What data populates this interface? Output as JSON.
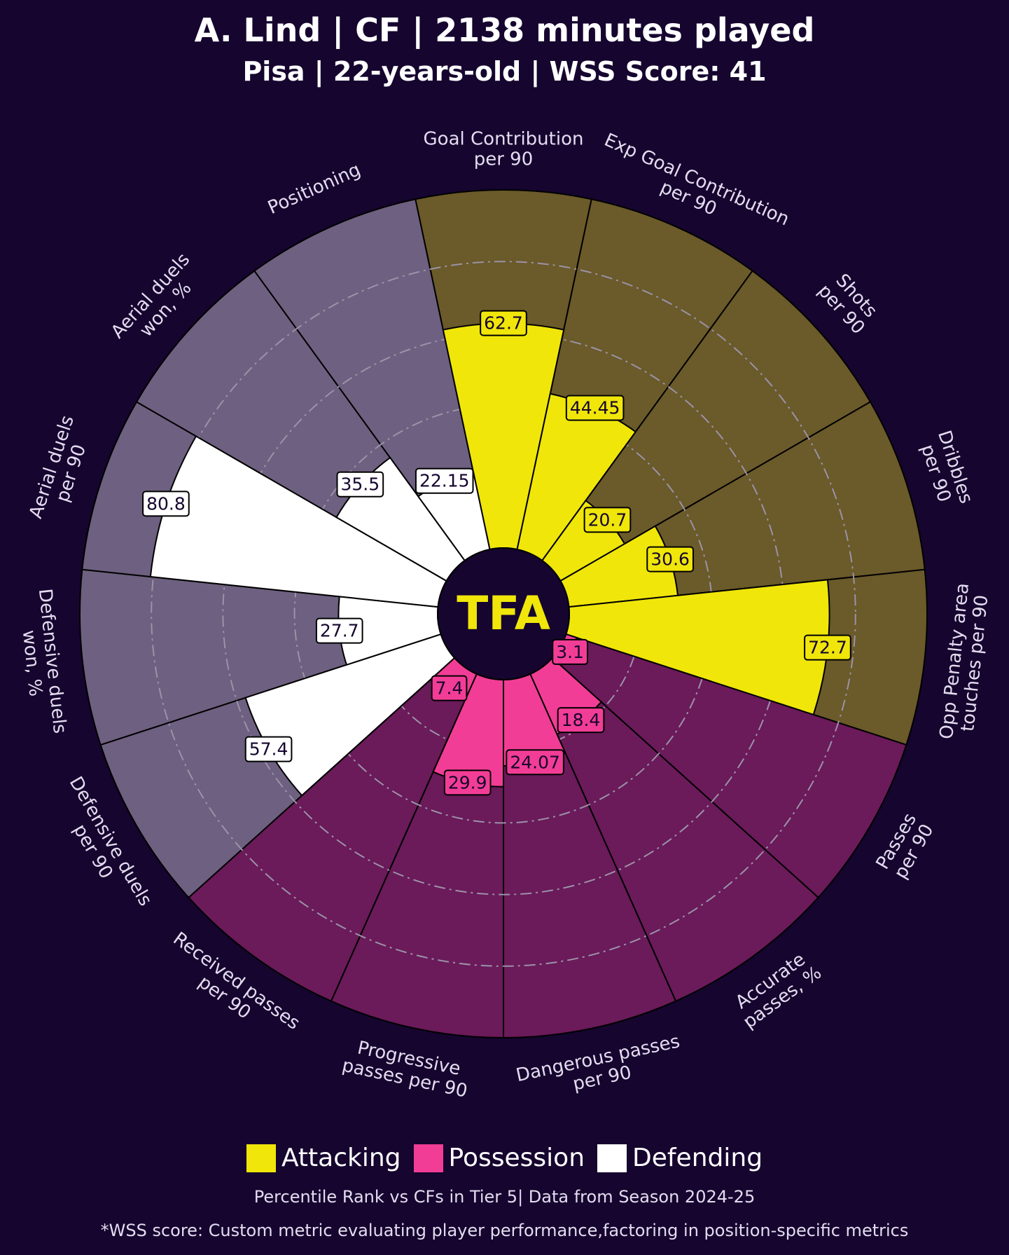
{
  "chart_data": {
    "type": "pizza",
    "title": "A. Lind | CF | 2138 minutes played",
    "subtitle": "Pisa | 22-years-old | WSS Score: 41",
    "center_label": "TFA",
    "rlim": [
      0,
      100
    ],
    "rticks": [
      20,
      40,
      60,
      80
    ],
    "series": [
      {
        "name": "Attacking",
        "color": "#f0e60a",
        "bg_color": "#6b5a2a",
        "categories": [
          "Goal Contribution\nper 90",
          "Exp Goal Contribution\nper 90",
          "Shots\nper 90",
          "Dribbles\nper 90",
          "Opp Penalty area\ntouches per 90"
        ],
        "values": [
          62.7,
          44.45,
          20.7,
          30.6,
          72.7
        ]
      },
      {
        "name": "Possession",
        "color": "#f23d96",
        "bg_color": "#6b1a5a",
        "categories": [
          "Passes\nper 90",
          "Accurate\npasses, %",
          "Dangerous passes\nper 90",
          "Progressive\npasses per 90",
          "Received passes\nper 90"
        ],
        "values": [
          3.1,
          18.4,
          24.07,
          29.9,
          7.4
        ]
      },
      {
        "name": "Defending",
        "color": "#ffffff",
        "bg_color": "#6e6080",
        "categories": [
          "Defensive duels\nper 90",
          "Defensive duels\nwon, %",
          "Aerial duels\nper 90",
          "Aerial duels\nwon, %",
          "Positioning"
        ],
        "values": [
          57.4,
          27.7,
          80.8,
          35.5,
          22.15
        ]
      }
    ],
    "note": "Percentile Rank vs CFs in Tier 5| Data from Season 2024-25",
    "footnote": "*WSS score: Custom metric evaluating player performance,factoring in position-specific metrics"
  }
}
